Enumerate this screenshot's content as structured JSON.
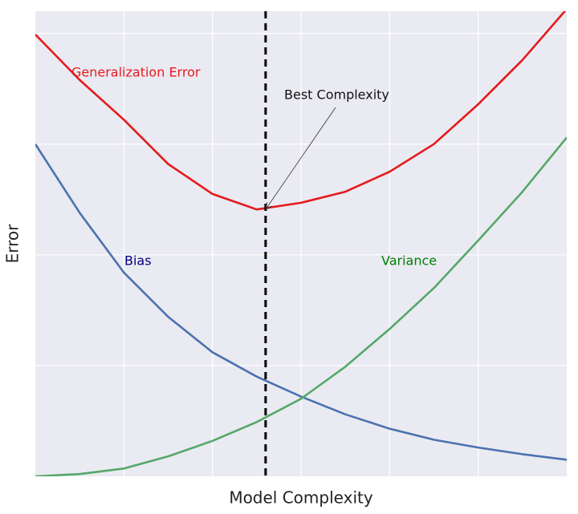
{
  "chart_data": {
    "type": "line",
    "xlabel": "Model Complexity",
    "ylabel": "Error",
    "xlim": [
      0,
      6
    ],
    "ylim": [
      0,
      4.2
    ],
    "xticks": [
      1,
      2,
      3,
      4,
      5
    ],
    "yticks": [
      1,
      2,
      3,
      4
    ],
    "grid": true,
    "x": [
      0,
      0.5,
      1,
      1.5,
      2,
      2.5,
      3,
      3.5,
      4,
      4.5,
      5,
      5.5,
      6
    ],
    "series": [
      {
        "name": "Generalization Error",
        "color": "#e41a1c",
        "label_color": "#e41a1c",
        "values": [
          3.99,
          3.58,
          3.22,
          2.82,
          2.55,
          2.41,
          2.47,
          2.57,
          2.75,
          3.0,
          3.36,
          3.76,
          4.22
        ]
      },
      {
        "name": "Bias",
        "color": "#4c72b0",
        "label_color": "#000080",
        "values": [
          3.0,
          2.38,
          1.84,
          1.44,
          1.12,
          0.9,
          0.72,
          0.56,
          0.43,
          0.33,
          0.26,
          0.2,
          0.15
        ]
      },
      {
        "name": "Variance",
        "color": "#55a868",
        "label_color": "#008000",
        "values": [
          0,
          0.02,
          0.07,
          0.18,
          0.32,
          0.49,
          0.7,
          0.99,
          1.33,
          1.7,
          2.13,
          2.57,
          3.06
        ]
      }
    ],
    "vline_x": 2.6,
    "annotation": {
      "text": "Best Complexity",
      "x": 2.6,
      "y": 2.41
    }
  }
}
